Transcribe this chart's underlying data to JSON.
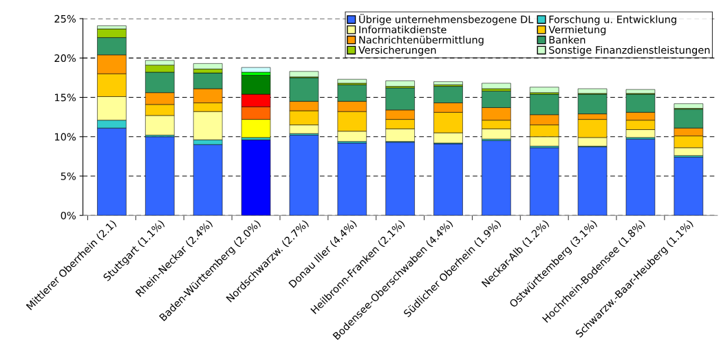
{
  "chart_data": {
    "type": "bar",
    "stacked": true,
    "categories": [
      "Mittlerer Oberrhein (2.1)",
      "Stuttgart (1.1%)",
      "Rhein-Neckar (2.4%)",
      "Baden-Württemberg (2.0%)",
      "Nordschwarzw. (2.7%)",
      "Donau Iller (4.4%)",
      "Heilbronn-Franken (2.1%)",
      "Bodensee-Oberschwaben (4.4%)",
      "Südlicher Oberhein (1.9%)",
      "Neckar-Alb (1.2%)",
      "Ostwürttemberg (3.1%)",
      "Hochrhein-Bodensee (1.8%)",
      "Schwarzw.-Baar-Heuberg (1.1%)"
    ],
    "series": [
      {
        "name": "Übrige unternehmensbezogene DL",
        "color": "#3366ff",
        "colors": [
          "#3366ff",
          "#3366ff",
          "#3366ff",
          "#0000ff",
          "#3366ff",
          "#3366ff",
          "#3366ff",
          "#3366ff",
          "#3366ff",
          "#3366ff",
          "#3366ff",
          "#3366ff",
          "#3366ff"
        ],
        "values": [
          11.1,
          10.0,
          9.0,
          9.6,
          10.2,
          9.2,
          9.3,
          9.1,
          9.5,
          8.6,
          8.7,
          9.7,
          7.4
        ]
      },
      {
        "name": "Forschung u. Entwicklung",
        "color": "#33cccc",
        "colors": [
          "#33cccc",
          "#33cccc",
          "#33cccc",
          "#33cccc",
          "#33cccc",
          "#33cccc",
          "#33cccc",
          "#33cccc",
          "#33cccc",
          "#33cccc",
          "#33cccc",
          "#33cccc",
          "#33cccc"
        ],
        "values": [
          1.0,
          0.2,
          0.6,
          0.3,
          0.2,
          0.2,
          0.1,
          0.1,
          0.2,
          0.2,
          0.1,
          0.2,
          0.2
        ]
      },
      {
        "name": "Informatikdienste",
        "color": "#ffff99",
        "colors": [
          "#ffff99",
          "#ffff99",
          "#ffff99",
          "#ffff00",
          "#ffff99",
          "#ffff99",
          "#ffff99",
          "#ffff99",
          "#ffff99",
          "#ffff99",
          "#ffff99",
          "#ffff99",
          "#ffff99"
        ],
        "values": [
          3.0,
          2.5,
          3.6,
          2.3,
          1.1,
          1.3,
          1.6,
          1.3,
          1.3,
          1.2,
          1.1,
          1.0,
          1.0
        ]
      },
      {
        "name": "Vermietung",
        "color": "#ffcc00",
        "colors": [
          "#ffcc00",
          "#ffcc00",
          "#ffcc00",
          "#ff6600",
          "#ffcc00",
          "#ffcc00",
          "#ffcc00",
          "#ffcc00",
          "#ffcc00",
          "#ffcc00",
          "#ffcc00",
          "#ffcc00",
          "#ffcc00"
        ],
        "values": [
          2.9,
          1.4,
          1.1,
          1.6,
          1.8,
          2.5,
          1.2,
          2.6,
          1.1,
          1.5,
          2.3,
          1.2,
          1.5
        ]
      },
      {
        "name": "Nachrichtenübermittlung",
        "color": "#ff9900",
        "colors": [
          "#ff9900",
          "#ff9900",
          "#ff9900",
          "#ff0000",
          "#ff9900",
          "#ff9900",
          "#ff9900",
          "#ff9900",
          "#ff9900",
          "#ff9900",
          "#ff9900",
          "#ff9900",
          "#ff9900"
        ],
        "values": [
          2.4,
          1.5,
          1.8,
          1.6,
          1.2,
          1.3,
          1.2,
          1.2,
          1.6,
          1.3,
          0.7,
          1.0,
          1.0
        ]
      },
      {
        "name": "Banken",
        "color": "#339966",
        "colors": [
          "#339966",
          "#339966",
          "#339966",
          "#008000",
          "#339966",
          "#339966",
          "#339966",
          "#339966",
          "#339966",
          "#339966",
          "#339966",
          "#339966",
          "#339966"
        ],
        "values": [
          2.2,
          2.6,
          2.0,
          2.4,
          3.0,
          2.1,
          2.8,
          2.1,
          2.1,
          2.6,
          2.5,
          2.3,
          2.4
        ]
      },
      {
        "name": "Versicherungen",
        "color": "#99cc00",
        "colors": [
          "#99cc00",
          "#99cc00",
          "#99cc00",
          "#00ff00",
          "#99cc00",
          "#99cc00",
          "#99cc00",
          "#99cc00",
          "#99cc00",
          "#99cc00",
          "#99cc00",
          "#99cc00",
          "#99cc00"
        ],
        "values": [
          1.1,
          0.9,
          0.5,
          0.4,
          0.1,
          0.2,
          0.2,
          0.2,
          0.3,
          0.2,
          0.1,
          0.1,
          0.1
        ]
      },
      {
        "name": "Sonstige Finanzdienstleistungen",
        "color": "#ccffcc",
        "colors": [
          "#ccffcc",
          "#ccffcc",
          "#ccffcc",
          "#ccffff",
          "#ccffcc",
          "#ccffcc",
          "#ccffcc",
          "#ccffcc",
          "#ccffcc",
          "#ccffcc",
          "#ccffcc",
          "#ccffcc",
          "#ccffcc"
        ],
        "values": [
          0.4,
          0.6,
          0.7,
          0.6,
          0.7,
          0.5,
          0.7,
          0.4,
          0.7,
          0.7,
          0.6,
          0.5,
          0.6
        ]
      }
    ],
    "ylim": [
      0,
      25
    ],
    "yticks": [
      {
        "value": 0,
        "label": "0%"
      },
      {
        "value": 5,
        "label": "5%"
      },
      {
        "value": 10,
        "label": "10%"
      },
      {
        "value": 15,
        "label": "15%"
      },
      {
        "value": 20,
        "label": "20%"
      },
      {
        "value": 25,
        "label": "25%"
      }
    ],
    "grid": "y",
    "line_style": "dashed",
    "legend": "top right"
  }
}
